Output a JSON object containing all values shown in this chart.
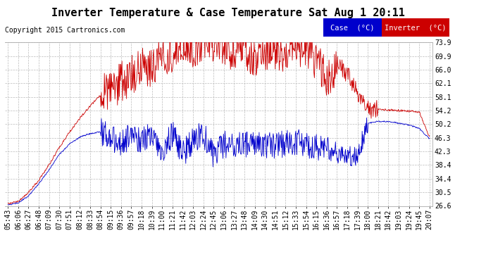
{
  "title": "Inverter Temperature & Case Temperature Sat Aug 1 20:11",
  "copyright": "Copyright 2015 Cartronics.com",
  "ylabel_right": [
    "73.9",
    "69.9",
    "66.0",
    "62.1",
    "58.1",
    "54.2",
    "50.2",
    "46.3",
    "42.3",
    "38.4",
    "34.4",
    "30.5",
    "26.6"
  ],
  "ytick_vals": [
    73.9,
    69.9,
    66.0,
    62.1,
    58.1,
    54.2,
    50.2,
    46.3,
    42.3,
    38.4,
    34.4,
    30.5,
    26.6
  ],
  "ylim": [
    26.6,
    73.9
  ],
  "legend_case_label": "Case  (°C)",
  "legend_inv_label": "Inverter  (°C)",
  "case_color": "#0000cc",
  "inverter_color": "#cc0000",
  "bg_color": "#ffffff",
  "grid_color": "#bbbbbb",
  "title_fontsize": 11,
  "copyright_fontsize": 7,
  "tick_fontsize": 7,
  "xtick_labels": [
    "05:43",
    "06:06",
    "06:27",
    "06:48",
    "07:09",
    "07:30",
    "07:51",
    "08:12",
    "08:33",
    "08:54",
    "09:15",
    "09:36",
    "09:57",
    "10:18",
    "10:39",
    "11:00",
    "11:21",
    "11:42",
    "12:03",
    "12:24",
    "12:45",
    "13:06",
    "13:27",
    "13:48",
    "14:09",
    "14:30",
    "14:51",
    "15:12",
    "15:33",
    "15:54",
    "16:15",
    "16:36",
    "16:57",
    "17:18",
    "17:39",
    "18:00",
    "18:21",
    "18:42",
    "19:03",
    "19:24",
    "19:45",
    "20:07"
  ],
  "inverter_y": [
    27.2,
    28.0,
    30.5,
    34.0,
    38.5,
    43.5,
    48.0,
    52.0,
    55.5,
    58.5,
    60.0,
    62.5,
    64.5,
    67.0,
    66.5,
    69.5,
    71.0,
    73.0,
    72.0,
    73.5,
    73.8,
    72.5,
    71.0,
    72.5,
    68.0,
    71.5,
    72.0,
    70.5,
    73.0,
    72.0,
    68.0,
    63.5,
    67.0,
    65.0,
    60.0,
    55.0,
    54.5,
    54.3,
    54.2,
    54.0,
    53.8,
    46.5
  ],
  "case_y": [
    26.8,
    27.5,
    29.5,
    33.0,
    37.0,
    41.5,
    44.5,
    46.5,
    47.5,
    48.0,
    46.5,
    44.5,
    47.0,
    45.5,
    47.5,
    43.0,
    47.5,
    41.5,
    45.5,
    47.5,
    41.0,
    44.5,
    44.0,
    44.5,
    44.0,
    44.5,
    44.0,
    44.5,
    45.0,
    44.0,
    43.5,
    43.0,
    41.5,
    41.0,
    41.0,
    50.5,
    51.0,
    51.0,
    50.5,
    50.0,
    49.0,
    46.0
  ]
}
